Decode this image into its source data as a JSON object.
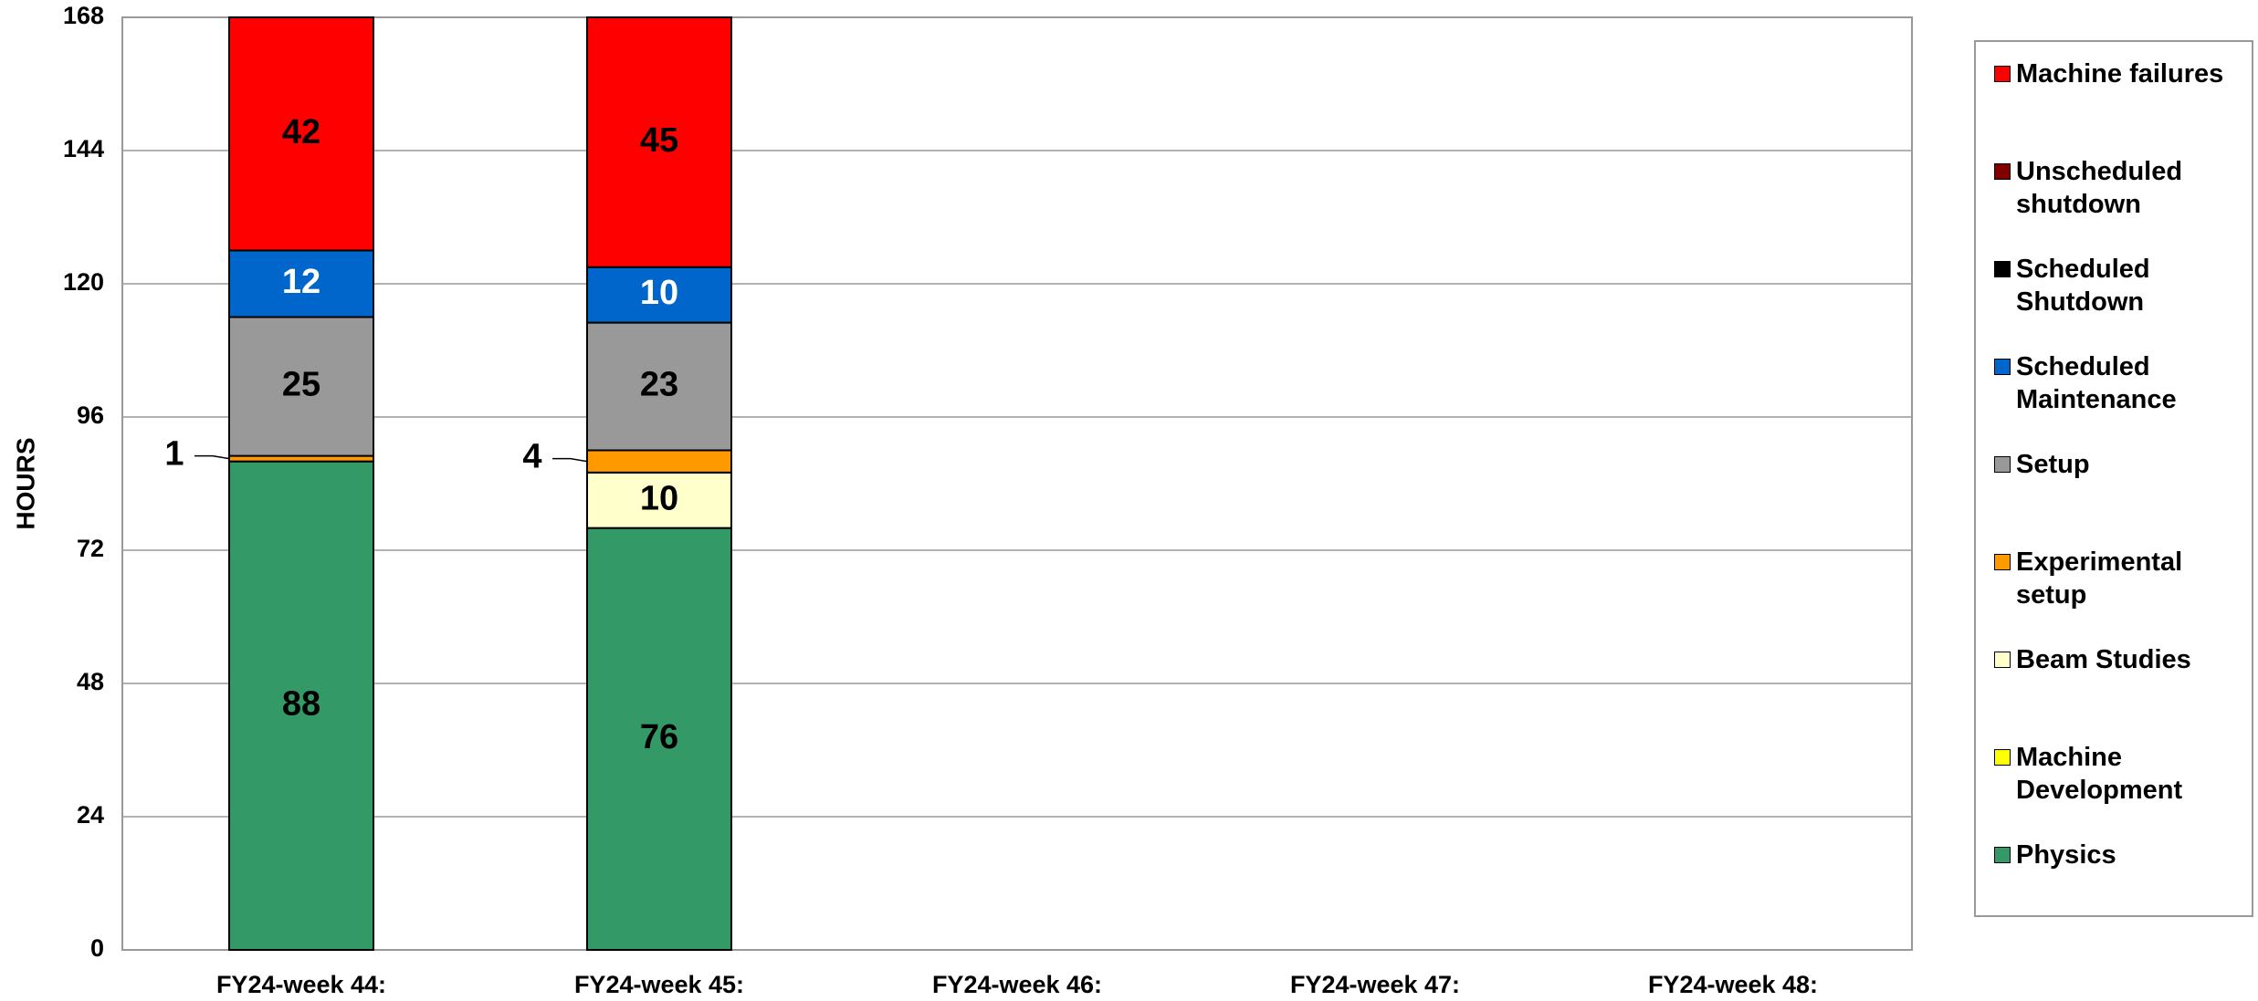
{
  "chart_data": {
    "type": "stacked_bar",
    "y_label": "HOURS",
    "categories": [
      "FY24-week 44:",
      "FY24-week 45:",
      "FY24-week 46:",
      "FY24-week 47:",
      "FY24-week 48:"
    ],
    "series": [
      {
        "name": "Physics",
        "color": "#339966",
        "values": [
          88,
          76,
          null,
          null,
          null
        ]
      },
      {
        "name": "Machine Development",
        "color": "#ffff00",
        "values": [
          0,
          0,
          null,
          null,
          null
        ]
      },
      {
        "name": "Beam Studies",
        "color": "#ffffcc",
        "values": [
          0,
          10,
          null,
          null,
          null
        ]
      },
      {
        "name": "Experimental setup",
        "color": "#ff9900",
        "values": [
          1,
          4,
          null,
          null,
          null
        ]
      },
      {
        "name": "Setup",
        "color": "#999999",
        "values": [
          25,
          23,
          null,
          null,
          null
        ]
      },
      {
        "name": "Scheduled Maintenance",
        "color": "#0066cc",
        "values": [
          12,
          10,
          null,
          null,
          null
        ]
      },
      {
        "name": "Scheduled Shutdown",
        "color": "#000000",
        "values": [
          0,
          0,
          null,
          null,
          null
        ]
      },
      {
        "name": "Unscheduled shutdown",
        "color": "#800000",
        "values": [
          0,
          0,
          null,
          null,
          null
        ]
      },
      {
        "name": "Machine failures",
        "color": "#ff0000",
        "values": [
          42,
          45,
          null,
          null,
          null
        ]
      }
    ],
    "ylim": [
      0,
      168
    ],
    "yticks": [
      0,
      24,
      48,
      72,
      96,
      120,
      144,
      168
    ],
    "grid": true,
    "legend": "right"
  }
}
